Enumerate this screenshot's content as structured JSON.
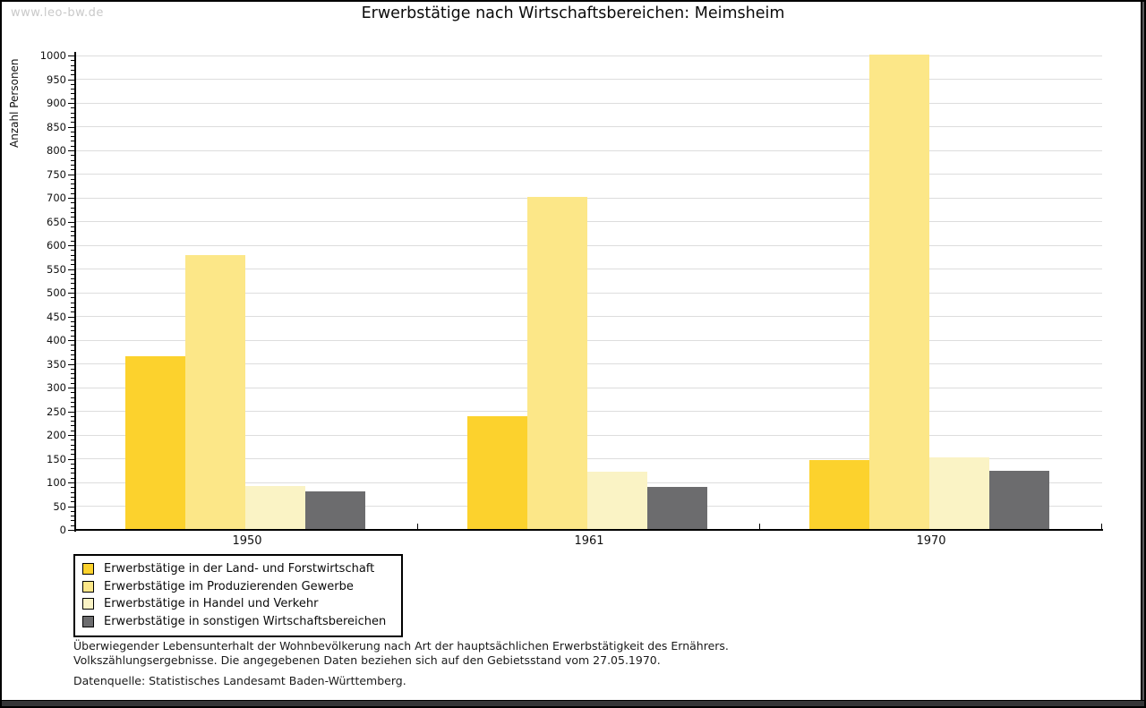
{
  "watermark": "www.leo-bw.de",
  "chart_data": {
    "type": "bar",
    "title": "Erwerbstätige nach Wirtschaftsbereichen: Meimsheim",
    "xlabel": "",
    "ylabel": "Anzahl Personen",
    "categories": [
      "1950",
      "1961",
      "1970"
    ],
    "series": [
      {
        "name": "Erwerbstätige in der Land- und Forstwirtschaft",
        "color": "#FCD22D",
        "values": [
          365,
          237,
          146
        ]
      },
      {
        "name": "Erwerbstätige im Produzierenden Gewerbe",
        "color": "#FCE788",
        "values": [
          578,
          700,
          1000
        ]
      },
      {
        "name": "Erwerbstätige in Handel und Verkehr",
        "color": "#FAF3C5",
        "values": [
          90,
          120,
          151
        ]
      },
      {
        "name": "Erwerbstätige in sonstigen Wirtschaftsbereichen",
        "color": "#6C6C6E",
        "values": [
          79,
          88,
          123
        ]
      }
    ],
    "ylim": [
      0,
      1000
    ],
    "ytick_step": 50,
    "minor_tick_step": 10,
    "grid": "horizontal",
    "legend_position": "bottom-left"
  },
  "footnote": {
    "lines": [
      "Überwiegender Lebensunterhalt der Wohnbevölkerung nach Art der hauptsächlichen Erwerbstätigkeit des Ernährers.",
      "Volkszählungsergebnisse. Die angegebenen Daten beziehen sich auf den Gebietsstand vom 27.05.1970."
    ],
    "source": "Datenquelle: Statistisches Landesamt Baden-Württemberg."
  }
}
